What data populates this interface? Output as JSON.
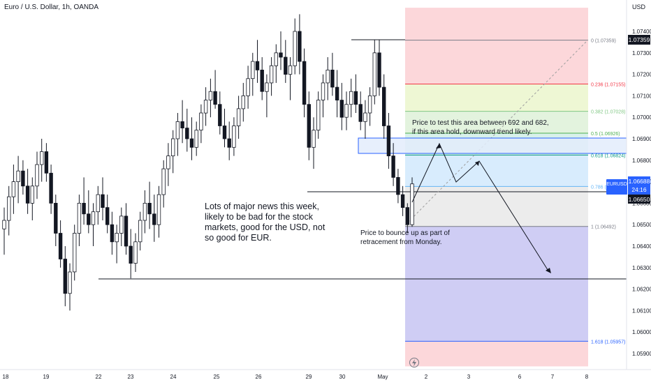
{
  "chart_title": "Euro / U.S. Dollar, 1h, OANDA",
  "price_axis": {
    "currency_label": "USD",
    "ticks": [
      "1.07400",
      "1.07300",
      "1.07200",
      "1.07100",
      "1.07000",
      "1.06900",
      "1.06800",
      "1.06700",
      "1.06600",
      "1.06500",
      "1.06400",
      "1.06300",
      "1.06200",
      "1.06100",
      "1.06000",
      "1.05900"
    ],
    "current_price_label": {
      "value": "1.06688",
      "symbol": "EURUSD",
      "countdown": "24:16"
    },
    "top_line_label": "1.07359",
    "lower_line_label": "1.06650"
  },
  "time_axis": {
    "ticks": [
      "18",
      "19",
      "22",
      "23",
      "24",
      "25",
      "26",
      "29",
      "30",
      "May",
      "2",
      "3",
      "6",
      "7",
      "8"
    ]
  },
  "fib_levels": [
    {
      "ratio": 0,
      "price": 1.07359,
      "label": "0 (1.07359)"
    },
    {
      "ratio": 0.236,
      "price": 1.07155,
      "label": "0.236 (1.07155)"
    },
    {
      "ratio": 0.382,
      "price": 1.07028,
      "label": "0.382 (1.07028)"
    },
    {
      "ratio": 0.5,
      "price": 1.06926,
      "label": "0.5 (1.06926)"
    },
    {
      "ratio": 0.618,
      "price": 1.06824,
      "label": "0.618 (1.06824)"
    },
    {
      "ratio": 0.786,
      "price": 1.06678,
      "label": "0.786 ("
    },
    {
      "ratio": 1,
      "price": 1.06492,
      "label": "1 (1.06492)"
    },
    {
      "ratio": 1.618,
      "price": 1.05957,
      "label": "1.618 (1.05957)"
    }
  ],
  "annotations": {
    "news": "Lots of major news this week,\nlikely to be bad for the stock\nmarkets, good for the USD, not\nso good for EUR.",
    "bounce": "Price to bounce up as part of\nretracement from Monday.",
    "test_area": "Price to test this area  between 692 and 682,\nif this area hold, downward trend likely."
  },
  "chart_data": {
    "type": "candlestick",
    "title": "Euro / U.S. Dollar, 1h, OANDA",
    "ylim": [
      1.0584,
      1.0751
    ],
    "x": [
      "18",
      "19",
      "22",
      "23",
      "24",
      "25",
      "26",
      "29",
      "30",
      "May",
      "2",
      "3",
      "6",
      "7",
      "8"
    ],
    "series": [
      {
        "ohlc": [
          [
            1.0648,
            1.0658,
            1.0636,
            1.0652
          ],
          [
            1.0652,
            1.0668,
            1.0645,
            1.0663
          ],
          [
            1.0663,
            1.0678,
            1.0655,
            1.067
          ],
          [
            1.067,
            1.0682,
            1.066,
            1.0675
          ],
          [
            1.0675,
            1.068,
            1.0664,
            1.0668
          ],
          [
            1.0668,
            1.0676,
            1.0655,
            1.066
          ],
          [
            1.066,
            1.0672,
            1.0652,
            1.0668
          ],
          [
            1.0668,
            1.0684,
            1.0662,
            1.0678
          ],
          [
            1.0678,
            1.069,
            1.067,
            1.0684
          ],
          [
            1.0684,
            1.0688,
            1.067,
            1.0674
          ],
          [
            1.0674,
            1.0678,
            1.0655,
            1.066
          ],
          [
            1.066,
            1.0664,
            1.064,
            1.0646
          ],
          [
            1.0646,
            1.0652,
            1.063,
            1.0634
          ],
          [
            1.0634,
            1.064,
            1.0612,
            1.0618
          ],
          [
            1.0618,
            1.0632,
            1.061,
            1.0628
          ],
          [
            1.0628,
            1.065,
            1.0624,
            1.0646
          ],
          [
            1.0646,
            1.0664,
            1.064,
            1.066
          ],
          [
            1.066,
            1.0672,
            1.065,
            1.0655
          ],
          [
            1.0655,
            1.0666,
            1.0646,
            1.065
          ],
          [
            1.065,
            1.066,
            1.064,
            1.0656
          ],
          [
            1.0656,
            1.0668,
            1.065,
            1.0664
          ],
          [
            1.0664,
            1.0672,
            1.0652,
            1.0658
          ],
          [
            1.0658,
            1.0664,
            1.0646,
            1.065
          ],
          [
            1.065,
            1.0656,
            1.0636,
            1.0642
          ],
          [
            1.0642,
            1.065,
            1.0632,
            1.0646
          ],
          [
            1.0646,
            1.0658,
            1.064,
            1.0654
          ],
          [
            1.0654,
            1.066,
            1.0636,
            1.064
          ],
          [
            1.064,
            1.0648,
            1.0625,
            1.0632
          ],
          [
            1.0632,
            1.0646,
            1.0628,
            1.0642
          ],
          [
            1.0642,
            1.0656,
            1.0638,
            1.0652
          ],
          [
            1.0652,
            1.0666,
            1.0646,
            1.066
          ],
          [
            1.066,
            1.067,
            1.0648,
            1.0655
          ],
          [
            1.0655,
            1.0664,
            1.0642,
            1.065
          ],
          [
            1.065,
            1.0668,
            1.0644,
            1.0664
          ],
          [
            1.0664,
            1.068,
            1.0658,
            1.0676
          ],
          [
            1.0676,
            1.0688,
            1.0668,
            1.0682
          ],
          [
            1.0682,
            1.0694,
            1.0674,
            1.069
          ],
          [
            1.069,
            1.0702,
            1.0682,
            1.0698
          ],
          [
            1.0698,
            1.0708,
            1.0688,
            1.0695
          ],
          [
            1.0695,
            1.0704,
            1.0684,
            1.069
          ],
          [
            1.069,
            1.07,
            1.068,
            1.0686
          ],
          [
            1.0686,
            1.0698,
            1.0682,
            1.0694
          ],
          [
            1.0694,
            1.0706,
            1.0688,
            1.0702
          ],
          [
            1.0702,
            1.0714,
            1.0696,
            1.0708
          ],
          [
            1.0708,
            1.0718,
            1.07,
            1.0712
          ],
          [
            1.0712,
            1.0722,
            1.0704,
            1.0706
          ],
          [
            1.0706,
            1.0712,
            1.0692,
            1.0696
          ],
          [
            1.0696,
            1.0704,
            1.0686,
            1.069
          ],
          [
            1.069,
            1.0698,
            1.068,
            1.0686
          ],
          [
            1.0686,
            1.07,
            1.0682,
            1.0696
          ],
          [
            1.0696,
            1.071,
            1.069,
            1.0704
          ],
          [
            1.0704,
            1.0716,
            1.0698,
            1.071
          ],
          [
            1.071,
            1.0724,
            1.0704,
            1.0718
          ],
          [
            1.0718,
            1.073,
            1.071,
            1.0726
          ],
          [
            1.0726,
            1.0736,
            1.0716,
            1.0722
          ],
          [
            1.0722,
            1.0728,
            1.0708,
            1.0712
          ],
          [
            1.0712,
            1.072,
            1.07,
            1.0716
          ],
          [
            1.0716,
            1.0728,
            1.071,
            1.0724
          ],
          [
            1.0724,
            1.0734,
            1.0716,
            1.073
          ],
          [
            1.073,
            1.074,
            1.0722,
            1.0728
          ],
          [
            1.0728,
            1.0736,
            1.0716,
            1.072
          ],
          [
            1.072,
            1.0728,
            1.0708,
            1.0724
          ],
          [
            1.0724,
            1.0746,
            1.072,
            1.074
          ],
          [
            1.074,
            1.0748,
            1.072,
            1.0726
          ],
          [
            1.0726,
            1.0732,
            1.07,
            1.0706
          ],
          [
            1.0706,
            1.0712,
            1.068,
            1.0686
          ],
          [
            1.0686,
            1.07,
            1.0676,
            1.0694
          ],
          [
            1.0694,
            1.0712,
            1.069,
            1.0708
          ],
          [
            1.0708,
            1.072,
            1.07,
            1.0716
          ],
          [
            1.0716,
            1.0728,
            1.0708,
            1.0722
          ],
          [
            1.0722,
            1.073,
            1.071,
            1.0714
          ],
          [
            1.0714,
            1.0722,
            1.07,
            1.0708
          ],
          [
            1.0708,
            1.0716,
            1.0694,
            1.07
          ],
          [
            1.07,
            1.0712,
            1.0694,
            1.0706
          ],
          [
            1.0706,
            1.0718,
            1.07,
            1.0712
          ],
          [
            1.0712,
            1.072,
            1.0702,
            1.0706
          ],
          [
            1.0706,
            1.0712,
            1.0694,
            1.0698
          ],
          [
            1.0698,
            1.0708,
            1.069,
            1.0702
          ],
          [
            1.0702,
            1.0714,
            1.0696,
            1.071
          ],
          [
            1.071,
            1.0736,
            1.0706,
            1.073
          ],
          [
            1.073,
            1.0736,
            1.071,
            1.0714
          ],
          [
            1.0714,
            1.072,
            1.069,
            1.0696
          ],
          [
            1.0696,
            1.0702,
            1.0676,
            1.0682
          ],
          [
            1.0682,
            1.0688,
            1.0668,
            1.0672
          ],
          [
            1.0672,
            1.0676,
            1.066,
            1.0664
          ],
          [
            1.0664,
            1.0668,
            1.0654,
            1.0658
          ],
          [
            1.0658,
            1.066,
            1.0646,
            1.065
          ],
          [
            1.065,
            1.0672,
            1.0649,
            1.0669
          ]
        ]
      }
    ]
  }
}
